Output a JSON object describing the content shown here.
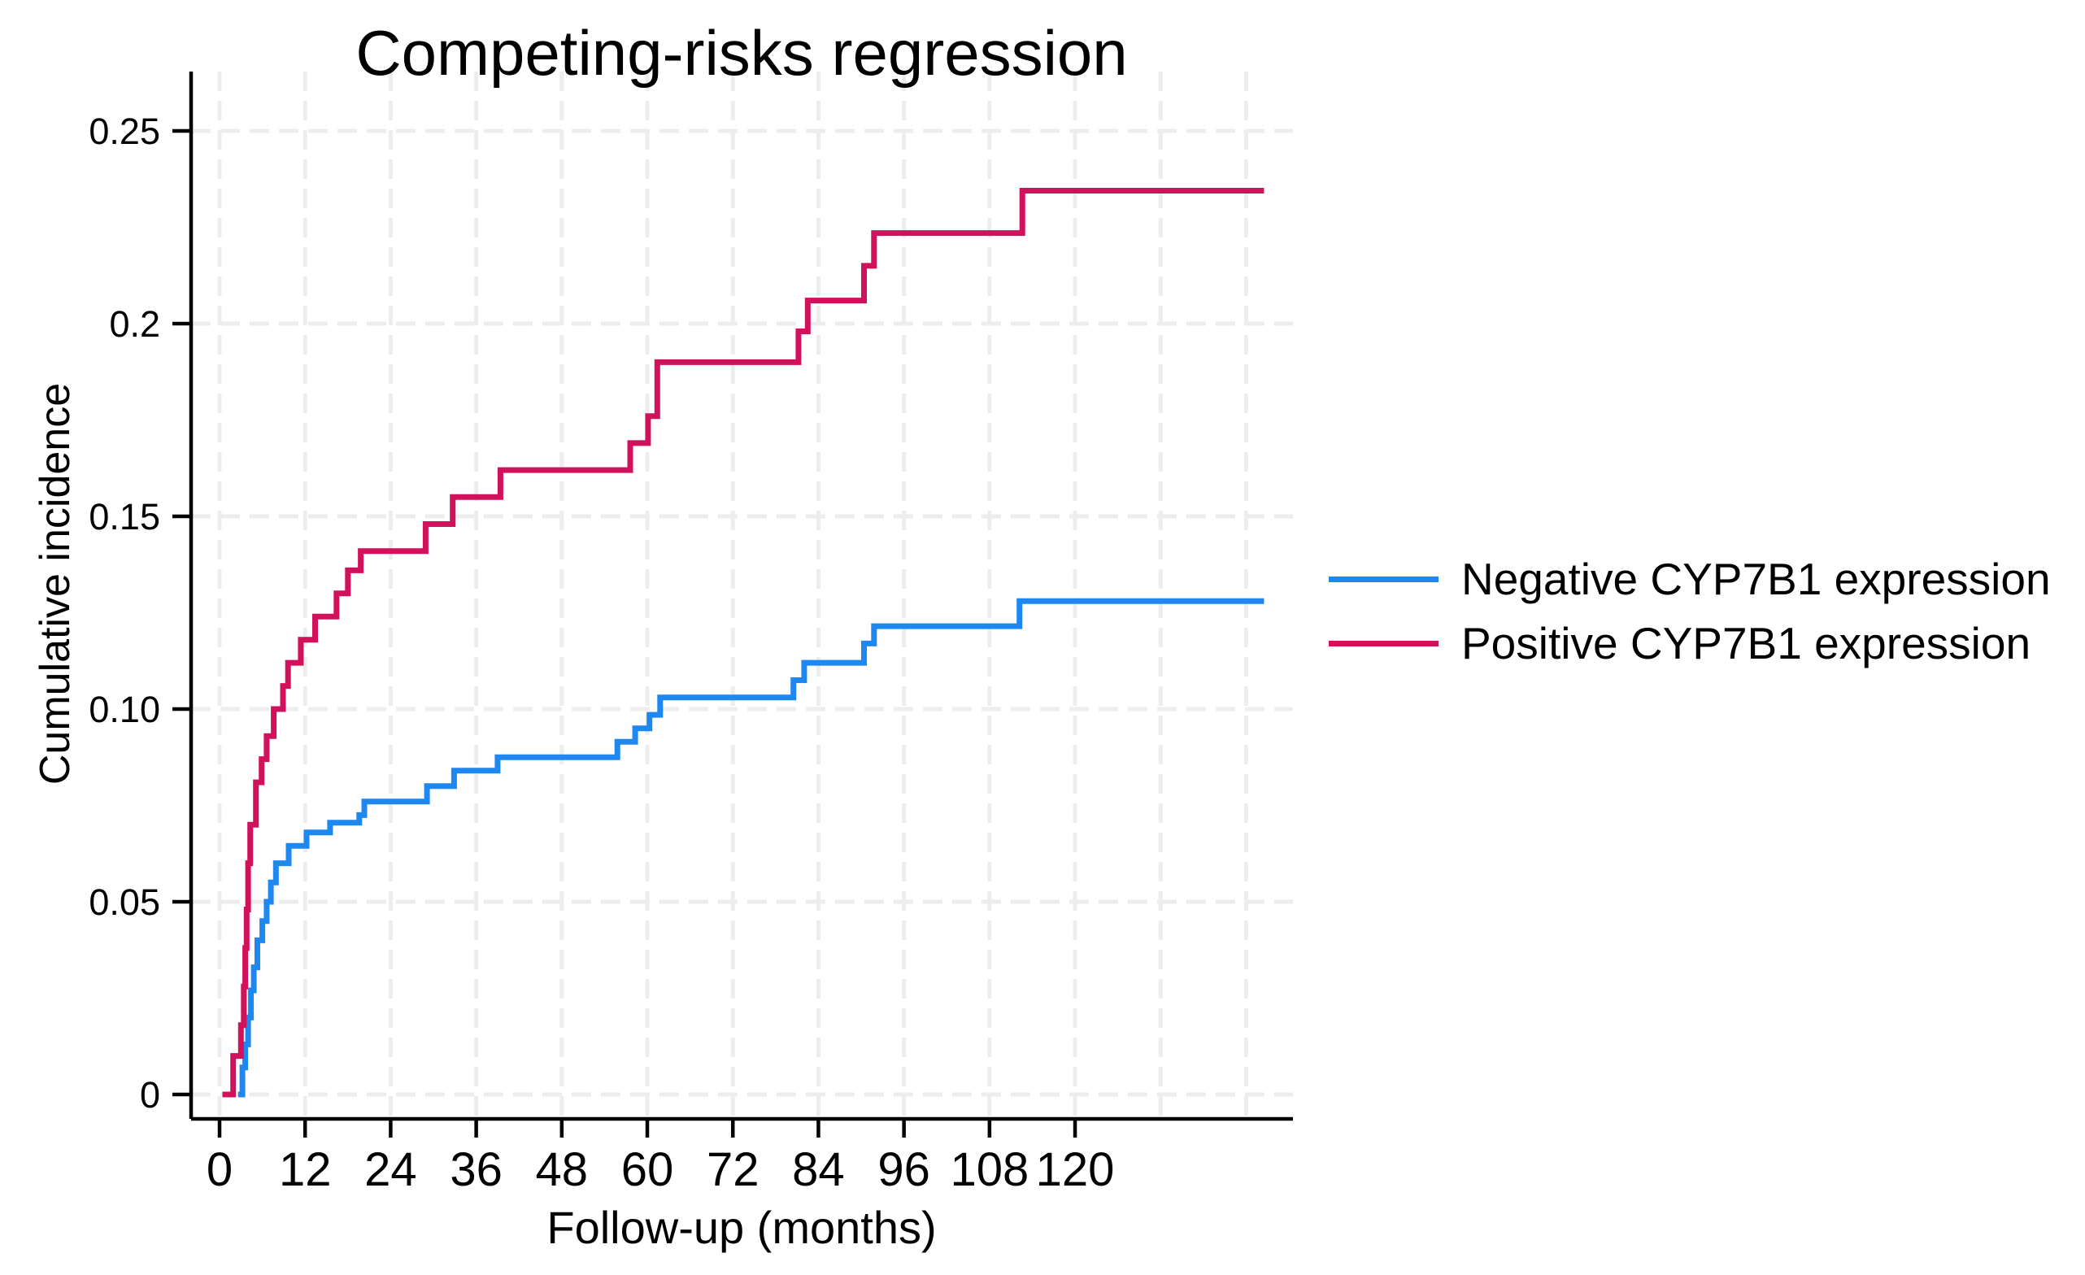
{
  "title": "Competing-risks regression",
  "colors": {
    "negative_series": "#1E87F0",
    "positive_series": "#D2115C",
    "gridline": "#EDEDED",
    "axis": "#000000",
    "background": "#FFFFFF"
  },
  "chart_data": {
    "type": "line",
    "subtype": "step-cumulative-incidence",
    "title": "Competing-risks regression",
    "xlabel": "Follow-up (months)",
    "ylabel": "Cumulative incidence",
    "xlim": [
      0,
      150.6
    ],
    "ylim": [
      0,
      0.265
    ],
    "grid": "dashed light-gray gridlines at every x tick (continuing unlabeled at 132 and 144) and every y tick",
    "legend_position": "right-middle, outside plot",
    "x_ticks": [
      {
        "value": 0,
        "label": "0"
      },
      {
        "value": 12,
        "label": "12"
      },
      {
        "value": 24,
        "label": "24"
      },
      {
        "value": 36,
        "label": "36"
      },
      {
        "value": 48,
        "label": "48"
      },
      {
        "value": 60,
        "label": "60"
      },
      {
        "value": 72,
        "label": "72"
      },
      {
        "value": 84,
        "label": "84"
      },
      {
        "value": 96,
        "label": "96"
      },
      {
        "value": 108,
        "label": "108"
      },
      {
        "value": 120,
        "label": "120"
      }
    ],
    "y_ticks": [
      {
        "value": 0,
        "label": "0"
      },
      {
        "value": 0.05,
        "label": "0.05"
      },
      {
        "value": 0.1,
        "label": "0.10"
      },
      {
        "value": 0.15,
        "label": "0.15"
      },
      {
        "value": 0.2,
        "label": "0.2"
      },
      {
        "value": 0.25,
        "label": "0.25"
      }
    ],
    "x_grid_months": [
      0,
      12,
      24,
      36,
      48,
      60,
      72,
      84,
      96,
      108,
      120,
      132,
      144
    ],
    "y_grid_values": [
      0,
      0.05,
      0.1,
      0.15,
      0.2,
      0.25
    ],
    "series": [
      {
        "name": "Negative CYP7B1 expression",
        "color": "#1E87F0",
        "end_month": 146.5,
        "points": [
          [
            2.6,
            0
          ],
          [
            3.2,
            0.007
          ],
          [
            3.6,
            0.013
          ],
          [
            4.0,
            0.02
          ],
          [
            4.4,
            0.027
          ],
          [
            4.8,
            0.033
          ],
          [
            5.3,
            0.04
          ],
          [
            6.0,
            0.045
          ],
          [
            6.6,
            0.05
          ],
          [
            7.2,
            0.055
          ],
          [
            7.9,
            0.06
          ],
          [
            9.7,
            0.0645
          ],
          [
            12.2,
            0.068
          ],
          [
            15.5,
            0.0705
          ],
          [
            19.6,
            0.0725
          ],
          [
            20.3,
            0.076
          ],
          [
            29.1,
            0.08
          ],
          [
            32.9,
            0.084
          ],
          [
            39.0,
            0.0875
          ],
          [
            55.8,
            0.0915
          ],
          [
            58.3,
            0.095
          ],
          [
            60.3,
            0.0985
          ],
          [
            61.8,
            0.103
          ],
          [
            80.5,
            0.1075
          ],
          [
            82.0,
            0.112
          ],
          [
            90.4,
            0.117
          ],
          [
            91.8,
            0.1215
          ],
          [
            112.2,
            0.128
          ]
        ]
      },
      {
        "name": "Positive CYP7B1 expression",
        "color": "#D2115C",
        "end_month": 146.5,
        "points": [
          [
            0.4,
            0
          ],
          [
            1.9,
            0.01
          ],
          [
            3.0,
            0.018
          ],
          [
            3.4,
            0.028
          ],
          [
            3.6,
            0.038
          ],
          [
            3.8,
            0.048
          ],
          [
            4.0,
            0.06
          ],
          [
            4.3,
            0.07
          ],
          [
            5.1,
            0.081
          ],
          [
            5.9,
            0.087
          ],
          [
            6.6,
            0.093
          ],
          [
            7.6,
            0.1
          ],
          [
            8.9,
            0.106
          ],
          [
            9.6,
            0.112
          ],
          [
            11.4,
            0.118
          ],
          [
            13.4,
            0.124
          ],
          [
            16.4,
            0.13
          ],
          [
            18.0,
            0.136
          ],
          [
            19.8,
            0.141
          ],
          [
            28.9,
            0.148
          ],
          [
            32.7,
            0.155
          ],
          [
            39.4,
            0.162
          ],
          [
            57.6,
            0.169
          ],
          [
            60.1,
            0.176
          ],
          [
            61.4,
            0.19
          ],
          [
            81.2,
            0.198
          ],
          [
            82.5,
            0.206
          ],
          [
            90.4,
            0.215
          ],
          [
            91.8,
            0.2235
          ],
          [
            112.6,
            0.2345
          ]
        ]
      }
    ]
  },
  "legend": {
    "items": [
      {
        "label": "Negative CYP7B1 expression",
        "color": "#1E87F0"
      },
      {
        "label": "Positive CYP7B1 expression",
        "color": "#D2115C"
      }
    ]
  }
}
